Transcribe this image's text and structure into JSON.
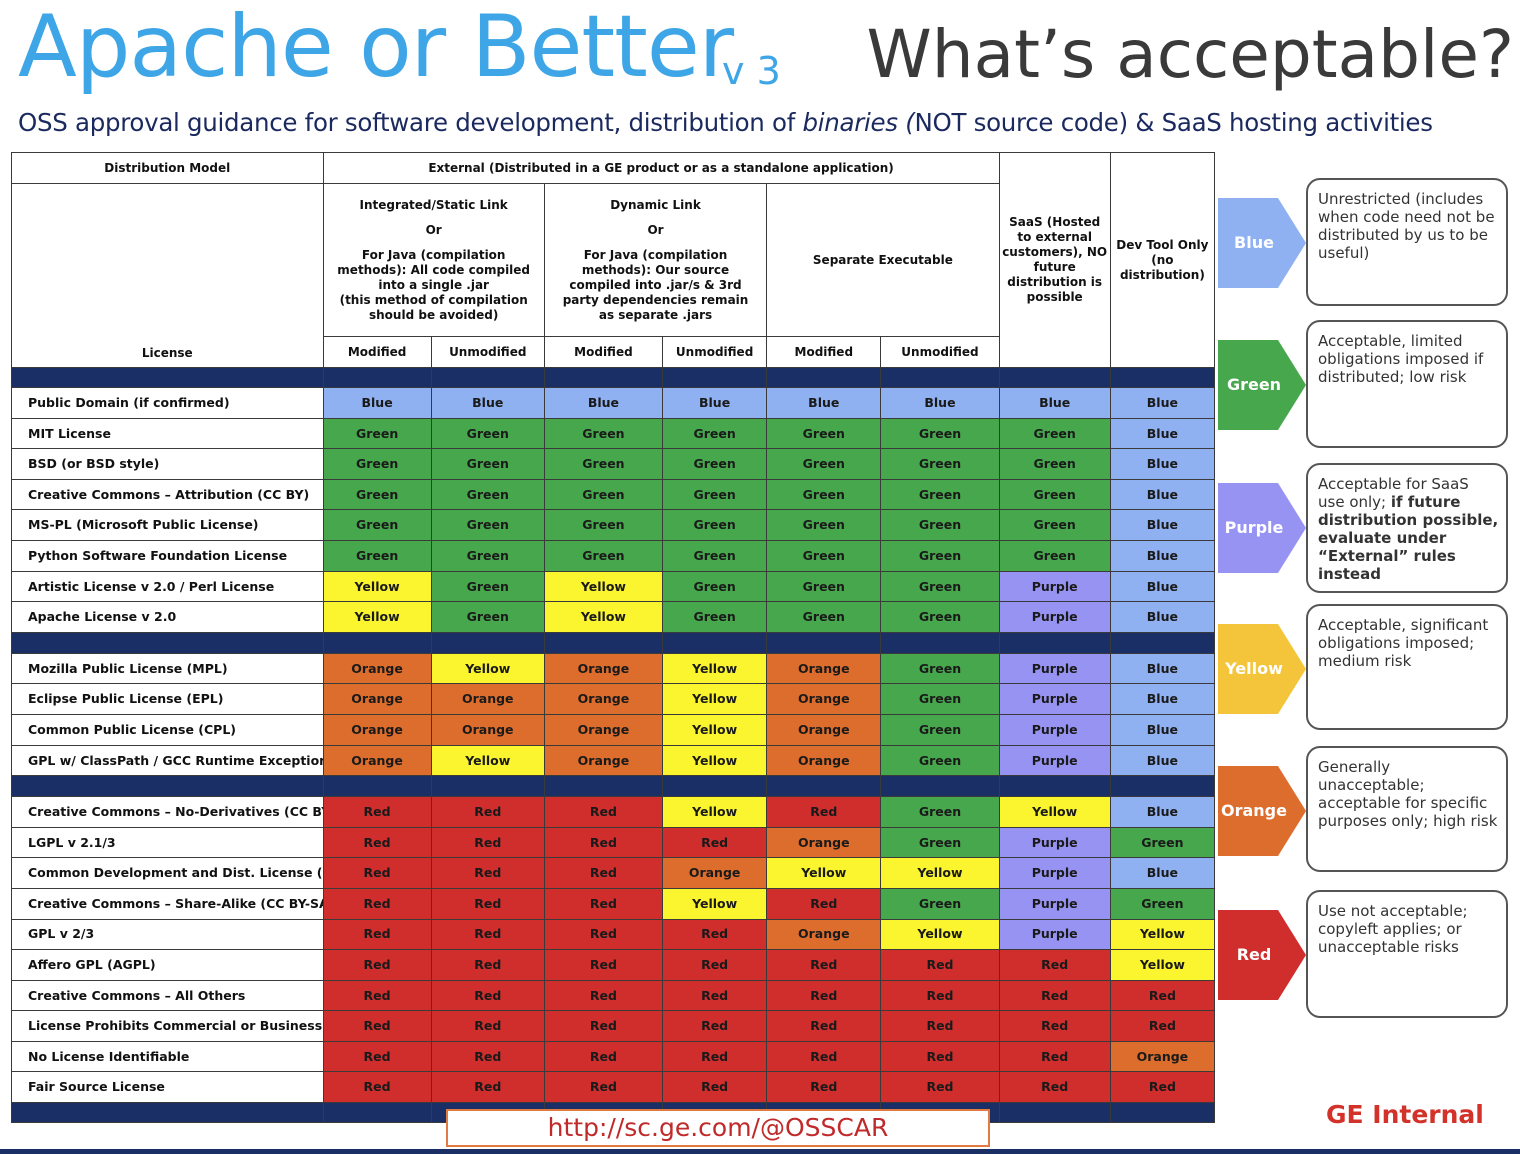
{
  "header": {
    "title": "Apache or Better",
    "version": "v 3",
    "right_title": "What’s acceptable?",
    "subtitle_before": "OSS approval guidance for software development, distribution of ",
    "subtitle_emph": "binaries (",
    "subtitle_after": "NOT source code) & SaaS hosting activities"
  },
  "table": {
    "distribution_model": "Distribution Model",
    "external_header": "External (Distributed in a GE product or as a standalone application)",
    "license_header": "License",
    "static_header": {
      "line1": "Integrated/Static Link",
      "line2": "Or",
      "line3": "For Java (compilation methods): All code compiled into a single .jar",
      "line4": "(this method of compilation should be avoided)"
    },
    "dynamic_header": {
      "line1": "Dynamic Link",
      "line2": "Or",
      "line3": "For Java (compilation methods): Our source compiled into .jar/s & 3rd party dependencies remain as separate .jars"
    },
    "separate_header": "Separate Executable",
    "saas_header": "SaaS (Hosted to external customers), NO future distribution is possible",
    "devtool_header": "Dev Tool Only (no distribution)",
    "modified": "Modified",
    "unmodified": "Unmodified",
    "groups": [
      [
        {
          "license": "Public Domain (if confirmed)",
          "values": [
            "Blue",
            "Blue",
            "Blue",
            "Blue",
            "Blue",
            "Blue",
            "Blue",
            "Blue"
          ]
        },
        {
          "license": "MIT License",
          "values": [
            "Green",
            "Green",
            "Green",
            "Green",
            "Green",
            "Green",
            "Green",
            "Blue"
          ]
        },
        {
          "license": "BSD (or BSD style)",
          "values": [
            "Green",
            "Green",
            "Green",
            "Green",
            "Green",
            "Green",
            "Green",
            "Blue"
          ]
        },
        {
          "license": "Creative Commons – Attribution (CC BY)",
          "values": [
            "Green",
            "Green",
            "Green",
            "Green",
            "Green",
            "Green",
            "Green",
            "Blue"
          ]
        },
        {
          "license": "MS-PL (Microsoft Public License)",
          "values": [
            "Green",
            "Green",
            "Green",
            "Green",
            "Green",
            "Green",
            "Green",
            "Blue"
          ]
        },
        {
          "license": "Python Software Foundation License",
          "values": [
            "Green",
            "Green",
            "Green",
            "Green",
            "Green",
            "Green",
            "Green",
            "Blue"
          ]
        },
        {
          "license": "Artistic License v 2.0 / Perl License",
          "values": [
            "Yellow",
            "Green",
            "Yellow",
            "Green",
            "Green",
            "Green",
            "Purple",
            "Blue"
          ]
        },
        {
          "license": "Apache License v 2.0",
          "values": [
            "Yellow",
            "Green",
            "Yellow",
            "Green",
            "Green",
            "Green",
            "Purple",
            "Blue"
          ]
        }
      ],
      [
        {
          "license": "Mozilla Public License (MPL)",
          "values": [
            "Orange",
            "Yellow",
            "Orange",
            "Yellow",
            "Orange",
            "Green",
            "Purple",
            "Blue"
          ]
        },
        {
          "license": "Eclipse Public License (EPL)",
          "values": [
            "Orange",
            "Orange",
            "Orange",
            "Yellow",
            "Orange",
            "Green",
            "Purple",
            "Blue"
          ]
        },
        {
          "license": "Common Public License (CPL)",
          "values": [
            "Orange",
            "Orange",
            "Orange",
            "Yellow",
            "Orange",
            "Green",
            "Purple",
            "Blue"
          ]
        },
        {
          "license": "GPL w/ ClassPath / GCC Runtime Exception",
          "values": [
            "Orange",
            "Yellow",
            "Orange",
            "Yellow",
            "Orange",
            "Green",
            "Purple",
            "Blue"
          ]
        }
      ],
      [
        {
          "license": "Creative Commons – No-Derivatives (CC BY-ND)",
          "values": [
            "Red",
            "Red",
            "Red",
            "Yellow",
            "Red",
            "Green",
            "Yellow",
            "Blue"
          ]
        },
        {
          "license": "LGPL v 2.1/3",
          "values": [
            "Red",
            "Red",
            "Red",
            "Red",
            "Orange",
            "Green",
            "Purple",
            "Green"
          ]
        },
        {
          "license": "Common Development and Dist. License (CDDL)",
          "values": [
            "Red",
            "Red",
            "Red",
            "Orange",
            "Yellow",
            "Yellow",
            "Purple",
            "Blue"
          ]
        },
        {
          "license": "Creative Commons – Share-Alike (CC BY-SA)",
          "values": [
            "Red",
            "Red",
            "Red",
            "Yellow",
            "Red",
            "Green",
            "Purple",
            "Green"
          ]
        },
        {
          "license": "GPL v 2/3",
          "values": [
            "Red",
            "Red",
            "Red",
            "Red",
            "Orange",
            "Yellow",
            "Purple",
            "Yellow"
          ]
        },
        {
          "license": "Affero GPL (AGPL)",
          "values": [
            "Red",
            "Red",
            "Red",
            "Red",
            "Red",
            "Red",
            "Red",
            "Yellow"
          ]
        },
        {
          "license": "Creative Commons – All Others",
          "values": [
            "Red",
            "Red",
            "Red",
            "Red",
            "Red",
            "Red",
            "Red",
            "Red"
          ]
        },
        {
          "license": "License Prohibits Commercial or Business Use",
          "values": [
            "Red",
            "Red",
            "Red",
            "Red",
            "Red",
            "Red",
            "Red",
            "Red"
          ]
        },
        {
          "license": "No License Identifiable",
          "values": [
            "Red",
            "Red",
            "Red",
            "Red",
            "Red",
            "Red",
            "Red",
            "Orange"
          ]
        },
        {
          "license": "Fair Source License",
          "values": [
            "Red",
            "Red",
            "Red",
            "Red",
            "Red",
            "Red",
            "Red",
            "Red"
          ]
        }
      ]
    ]
  },
  "legend": [
    {
      "label": "Blue",
      "color": "#8fb1f1",
      "text": "Unrestricted (includes when code need not be distributed by us to be useful)",
      "bold": ""
    },
    {
      "label": "Green",
      "color": "#46a74c",
      "text": "Acceptable, limited obligations imposed if distributed; low risk",
      "bold": ""
    },
    {
      "label": "Purple",
      "color": "#9793f2",
      "text": "Acceptable for SaaS use only; ",
      "bold": "if future distribution possible, evaluate under “External” rules instead"
    },
    {
      "label": "Yellow",
      "color": "#f4c53a",
      "text": "Acceptable, significant obligations imposed; medium risk",
      "bold": ""
    },
    {
      "label": "Orange",
      "color": "#dc6d2c",
      "text": "Generally unacceptable; acceptable for specific purposes only; high risk",
      "bold": ""
    },
    {
      "label": "Red",
      "color": "#d02d2d",
      "text": "Use not acceptable; copyleft applies; or unacceptable risks",
      "bold": ""
    }
  ],
  "footer": {
    "url": "http://sc.ge.com/@OSSCAR",
    "classification": "GE Internal"
  }
}
